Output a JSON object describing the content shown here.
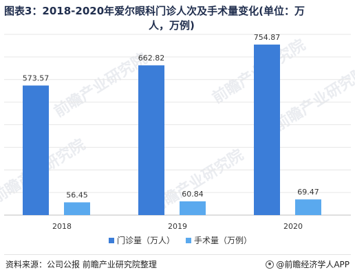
{
  "title_line1": "图表3：2018-2020年爱尔眼科门诊人次及手术量变化(单位：万",
  "title_line2": "人，万例)",
  "source": "资料来源：公司公报 前瞻产业研究院整理",
  "brand": "@前瞻经济学人APP",
  "watermark": "前瞻产业研究院",
  "colors": {
    "series1": "#3b7dd8",
    "series2": "#5aa9ee",
    "grid": "#e6e6e6",
    "axis": "#bfbfbf",
    "text": "#333333"
  },
  "chart_data": {
    "type": "bar",
    "categories": [
      "2018",
      "2019",
      "2020"
    ],
    "series": [
      {
        "name": "门诊量（万人）",
        "values": [
          573.57,
          662.82,
          754.87
        ],
        "labels": [
          "573.57",
          "662.82",
          "754.87"
        ]
      },
      {
        "name": "手术量（万例）",
        "values": [
          56.45,
          60.84,
          69.47
        ],
        "labels": [
          "56.45",
          "60.84",
          "69.47"
        ]
      }
    ],
    "ylim": [
      0,
      800
    ],
    "grid": true,
    "legend_position": "bottom-center"
  }
}
